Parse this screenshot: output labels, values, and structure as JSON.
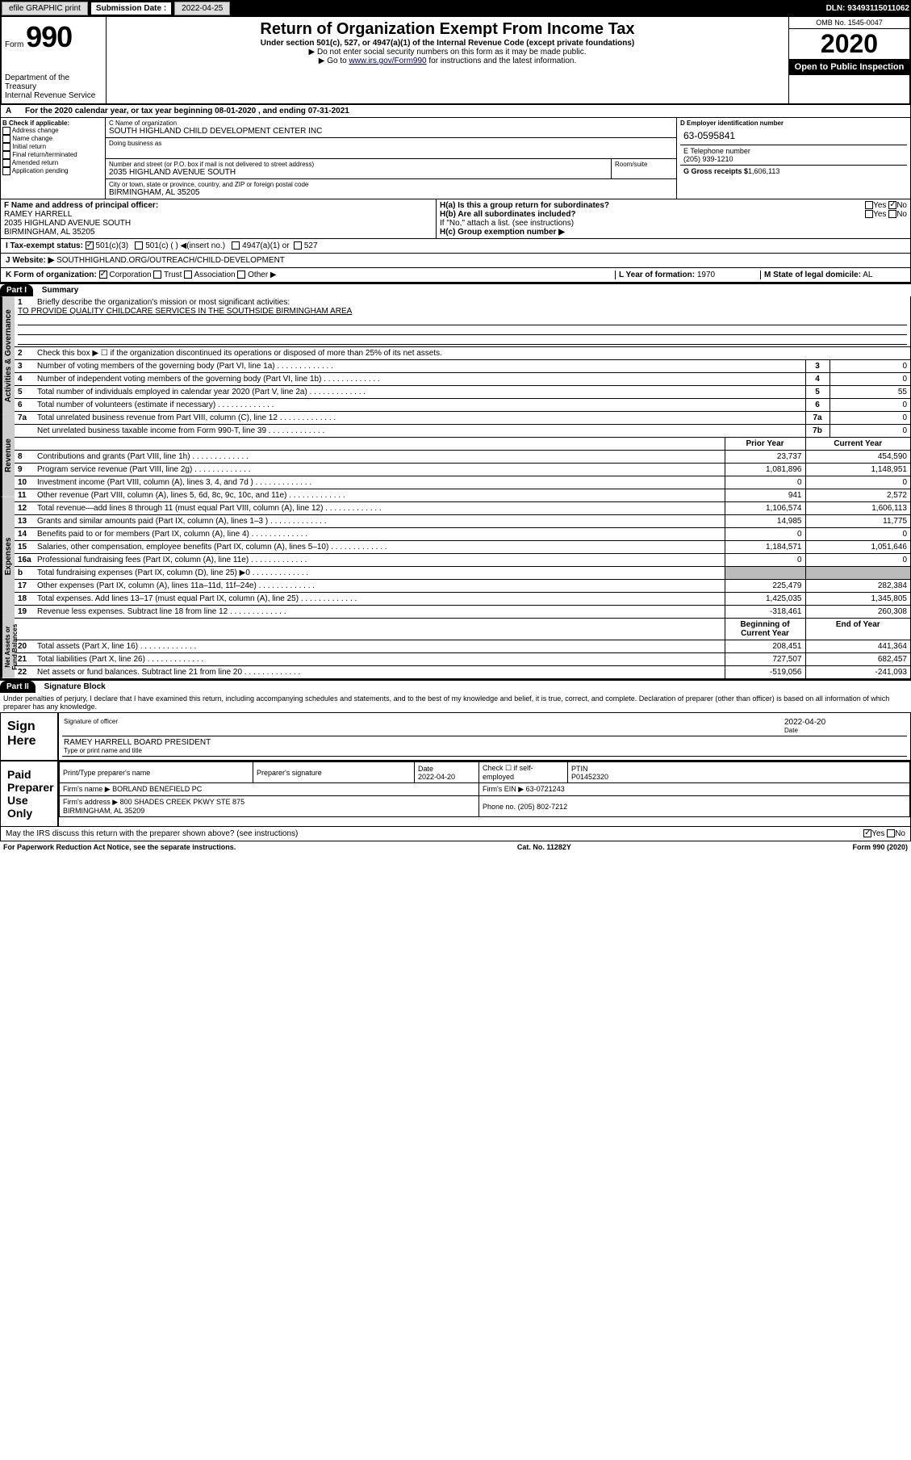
{
  "toolbar": {
    "efile": "efile GRAPHIC print",
    "submission_label": "Submission Date :",
    "submission_date": "2022-04-25",
    "dln": "DLN: 93493115011062"
  },
  "header": {
    "form_word": "Form",
    "form_number": "990",
    "dept": "Department of the Treasury",
    "irs": "Internal Revenue Service",
    "title": "Return of Organization Exempt From Income Tax",
    "subtitle": "Under section 501(c), 527, or 4947(a)(1) of the Internal Revenue Code (except private foundations)",
    "instruct1": "▶ Do not enter social security numbers on this form as it may be made public.",
    "instruct2_pre": "▶ Go to ",
    "instruct2_link": "www.irs.gov/Form990",
    "instruct2_post": " for instructions and the latest information.",
    "omb": "OMB No. 1545-0047",
    "year": "2020",
    "open": "Open to Public Inspection"
  },
  "line_a": "For the 2020 calendar year, or tax year beginning 08-01-2020     , and ending 07-31-2021",
  "section_b": {
    "label": "B Check if applicable:",
    "items": [
      "Address change",
      "Name change",
      "Initial return",
      "Final return/terminated",
      "Amended return",
      "Application pending"
    ]
  },
  "section_c": {
    "name_label": "C Name of organization",
    "name": "SOUTH HIGHLAND CHILD DEVELOPMENT CENTER INC",
    "dba_label": "Doing business as",
    "street_label": "Number and street (or P.O. box if mail is not delivered to street address)",
    "street": "2035 HIGHLAND AVENUE SOUTH",
    "room_label": "Room/suite",
    "city_label": "City or town, state or province, country, and ZIP or foreign postal code",
    "city": "BIRMINGHAM, AL  35205"
  },
  "section_d": {
    "label": "D Employer identification number",
    "ein": "63-0595841"
  },
  "section_e": {
    "label": "E Telephone number",
    "phone": "(205) 939-1210"
  },
  "section_g": {
    "label": "G Gross receipts $",
    "amount": "1,606,113"
  },
  "section_f": {
    "label": "F  Name and address of principal officer:",
    "name": "RAMEY HARRELL",
    "addr": "2035 HIGHLAND AVENUE SOUTH\nBIRMINGHAM, AL  35205"
  },
  "section_h": {
    "ha": "H(a)  Is this a group return for subordinates?",
    "hb": "H(b)  Are all subordinates included?",
    "hb_note": "If \"No,\" attach a list. (see instructions)",
    "hc": "H(c)  Group exemption number ▶",
    "yes": "Yes",
    "no": "No"
  },
  "section_i": {
    "label": "I   Tax-exempt status:",
    "opts": [
      "501(c)(3)",
      "501(c) (  ) ◀(insert no.)",
      "4947(a)(1) or",
      "527"
    ]
  },
  "section_j": {
    "label": "J   Website: ▶",
    "value": "SOUTHHIGHLAND.ORG/OUTREACH/CHILD-DEVELOPMENT"
  },
  "section_k": {
    "label": "K Form of organization:",
    "opts": [
      "Corporation",
      "Trust",
      "Association",
      "Other ▶"
    ]
  },
  "section_l": {
    "label": "L Year of formation:",
    "value": "1970"
  },
  "section_m": {
    "label": "M State of legal domicile:",
    "value": "AL"
  },
  "part1": {
    "header": "Part I",
    "title": "Summary",
    "tabs": [
      "Activities & Governance",
      "Revenue",
      "Expenses",
      "Net Assets or Fund Balances"
    ],
    "q1": "Briefly describe the organization's mission or most significant activities:",
    "q1_ans": "TO PROVIDE QUALITY CHILDCARE SERVICES IN THE SOUTHSIDE BIRMINGHAM AREA",
    "q2": "Check this box ▶ ☐  if the organization discontinued its operations or disposed of more than 25% of its net assets.",
    "rows": [
      {
        "n": "3",
        "txt": "Number of voting members of the governing body (Part VI, line 1a)",
        "box": "3",
        "v": "0"
      },
      {
        "n": "4",
        "txt": "Number of independent voting members of the governing body (Part VI, line 1b)",
        "box": "4",
        "v": "0"
      },
      {
        "n": "5",
        "txt": "Total number of individuals employed in calendar year 2020 (Part V, line 2a)",
        "box": "5",
        "v": "55"
      },
      {
        "n": "6",
        "txt": "Total number of volunteers (estimate if necessary)",
        "box": "6",
        "v": "0"
      },
      {
        "n": "7a",
        "txt": "Total unrelated business revenue from Part VIII, column (C), line 12",
        "box": "7a",
        "v": "0"
      },
      {
        "n": "",
        "txt": "Net unrelated business taxable income from Form 990-T, line 39",
        "box": "7b",
        "v": "0"
      }
    ],
    "col_prior": "Prior Year",
    "col_current": "Current Year",
    "col_begin": "Beginning of Current Year",
    "col_end": "End of Year",
    "revenue": [
      {
        "n": "8",
        "txt": "Contributions and grants (Part VIII, line 1h)",
        "p": "23,737",
        "c": "454,590"
      },
      {
        "n": "9",
        "txt": "Program service revenue (Part VIII, line 2g)",
        "p": "1,081,896",
        "c": "1,148,951"
      },
      {
        "n": "10",
        "txt": "Investment income (Part VIII, column (A), lines 3, 4, and 7d )",
        "p": "0",
        "c": "0"
      },
      {
        "n": "11",
        "txt": "Other revenue (Part VIII, column (A), lines 5, 6d, 8c, 9c, 10c, and 11e)",
        "p": "941",
        "c": "2,572"
      },
      {
        "n": "12",
        "txt": "Total revenue—add lines 8 through 11 (must equal Part VIII, column (A), line 12)",
        "p": "1,106,574",
        "c": "1,606,113"
      }
    ],
    "expenses": [
      {
        "n": "13",
        "txt": "Grants and similar amounts paid (Part IX, column (A), lines 1–3 )",
        "p": "14,985",
        "c": "11,775"
      },
      {
        "n": "14",
        "txt": "Benefits paid to or for members (Part IX, column (A), line 4)",
        "p": "0",
        "c": "0"
      },
      {
        "n": "15",
        "txt": "Salaries, other compensation, employee benefits (Part IX, column (A), lines 5–10)",
        "p": "1,184,571",
        "c": "1,051,646"
      },
      {
        "n": "16a",
        "txt": "Professional fundraising fees (Part IX, column (A), line 11e)",
        "p": "0",
        "c": "0"
      },
      {
        "n": "b",
        "txt": "Total fundraising expenses (Part IX, column (D), line 25) ▶0",
        "p": "",
        "c": "",
        "shaded": true
      },
      {
        "n": "17",
        "txt": "Other expenses (Part IX, column (A), lines 11a–11d, 11f–24e)",
        "p": "225,479",
        "c": "282,384"
      },
      {
        "n": "18",
        "txt": "Total expenses. Add lines 13–17 (must equal Part IX, column (A), line 25)",
        "p": "1,425,035",
        "c": "1,345,805"
      },
      {
        "n": "19",
        "txt": "Revenue less expenses. Subtract line 18 from line 12",
        "p": "-318,461",
        "c": "260,308"
      }
    ],
    "netassets": [
      {
        "n": "20",
        "txt": "Total assets (Part X, line 16)",
        "p": "208,451",
        "c": "441,364"
      },
      {
        "n": "21",
        "txt": "Total liabilities (Part X, line 26)",
        "p": "727,507",
        "c": "682,457"
      },
      {
        "n": "22",
        "txt": "Net assets or fund balances. Subtract line 21 from line 20",
        "p": "-519,056",
        "c": "-241,093"
      }
    ]
  },
  "part2": {
    "header": "Part II",
    "title": "Signature Block",
    "perjury": "Under penalties of perjury, I declare that I have examined this return, including accompanying schedules and statements, and to the best of my knowledge and belief, it is true, correct, and complete. Declaration of preparer (other than officer) is based on all information of which preparer has any knowledge.",
    "sign_here": "Sign Here",
    "sig_officer": "Signature of officer",
    "sig_date_label": "Date",
    "sig_date": "2022-04-20",
    "sig_name": "RAMEY HARRELL  BOARD PRESIDENT",
    "sig_type": "Type or print name and title",
    "paid_prep": "Paid Preparer Use Only",
    "prep_name_label": "Print/Type preparer's name",
    "prep_sig_label": "Preparer's signature",
    "prep_date_label": "Date",
    "prep_date": "2022-04-20",
    "self_emp": "Check ☐ if self-employed",
    "ptin_label": "PTIN",
    "ptin": "P01452320",
    "firm_name_label": "Firm's name    ▶",
    "firm_name": "BORLAND BENEFIELD PC",
    "firm_ein_label": "Firm's EIN ▶",
    "firm_ein": "63-0721243",
    "firm_addr_label": "Firm's address ▶",
    "firm_addr": "800 SHADES CREEK PKWY STE 875",
    "firm_city": "BIRMINGHAM, AL  35209",
    "phone_label": "Phone no.",
    "phone": "(205) 802-7212",
    "discuss": "May the IRS discuss this return with the preparer shown above? (see instructions)"
  },
  "footer": {
    "paperwork": "For Paperwork Reduction Act Notice, see the separate instructions.",
    "cat": "Cat. No. 11282Y",
    "form": "Form 990 (2020)"
  },
  "colors": {
    "black": "#000000",
    "gray_tab": "#cccccc",
    "shaded": "#bbbbbb",
    "link": "#000066"
  }
}
